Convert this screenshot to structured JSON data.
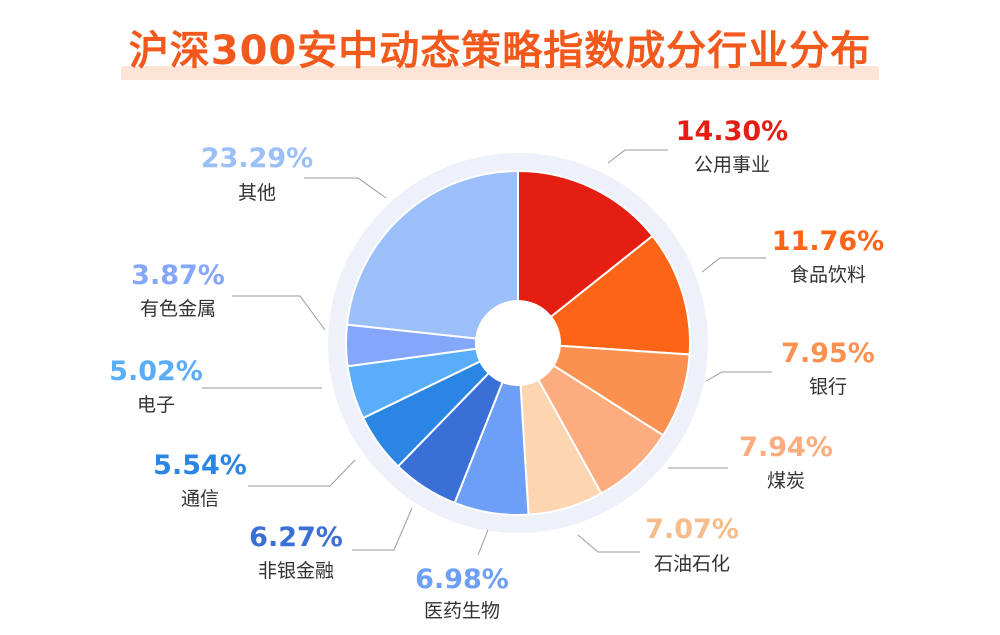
{
  "title": "沪深300安中动态策略指数成分行业分布",
  "chart_data": {
    "type": "pie",
    "donut": true,
    "slices": [
      {
        "label": "公用事业",
        "value": 14.3,
        "display": "14.30%",
        "color": "#e41e13"
      },
      {
        "label": "食品饮料",
        "value": 11.76,
        "display": "11.76%",
        "color": "#fc6518"
      },
      {
        "label": "银行",
        "value": 7.95,
        "display": "7.95%",
        "color": "#fb9151"
      },
      {
        "label": "煤炭",
        "value": 7.94,
        "display": "7.94%",
        "color": "#fcac7e"
      },
      {
        "label": "石油石化",
        "value": 7.07,
        "display": "7.07%",
        "color": "#fdd5b1"
      },
      {
        "label": "医药生物",
        "value": 6.98,
        "display": "6.98%",
        "color": "#6e9ff6"
      },
      {
        "label": "非银金融",
        "value": 6.27,
        "display": "6.27%",
        "color": "#3a6fd6"
      },
      {
        "label": "通信",
        "value": 5.54,
        "display": "5.54%",
        "color": "#2b85e3"
      },
      {
        "label": "电子",
        "value": 5.02,
        "display": "5.02%",
        "color": "#5aadf8"
      },
      {
        "label": "有色金属",
        "value": 3.87,
        "display": "3.87%",
        "color": "#84a6fb"
      },
      {
        "label": "其他",
        "value": 23.29,
        "display": "23.29%",
        "color": "#9bbff9"
      }
    ]
  }
}
